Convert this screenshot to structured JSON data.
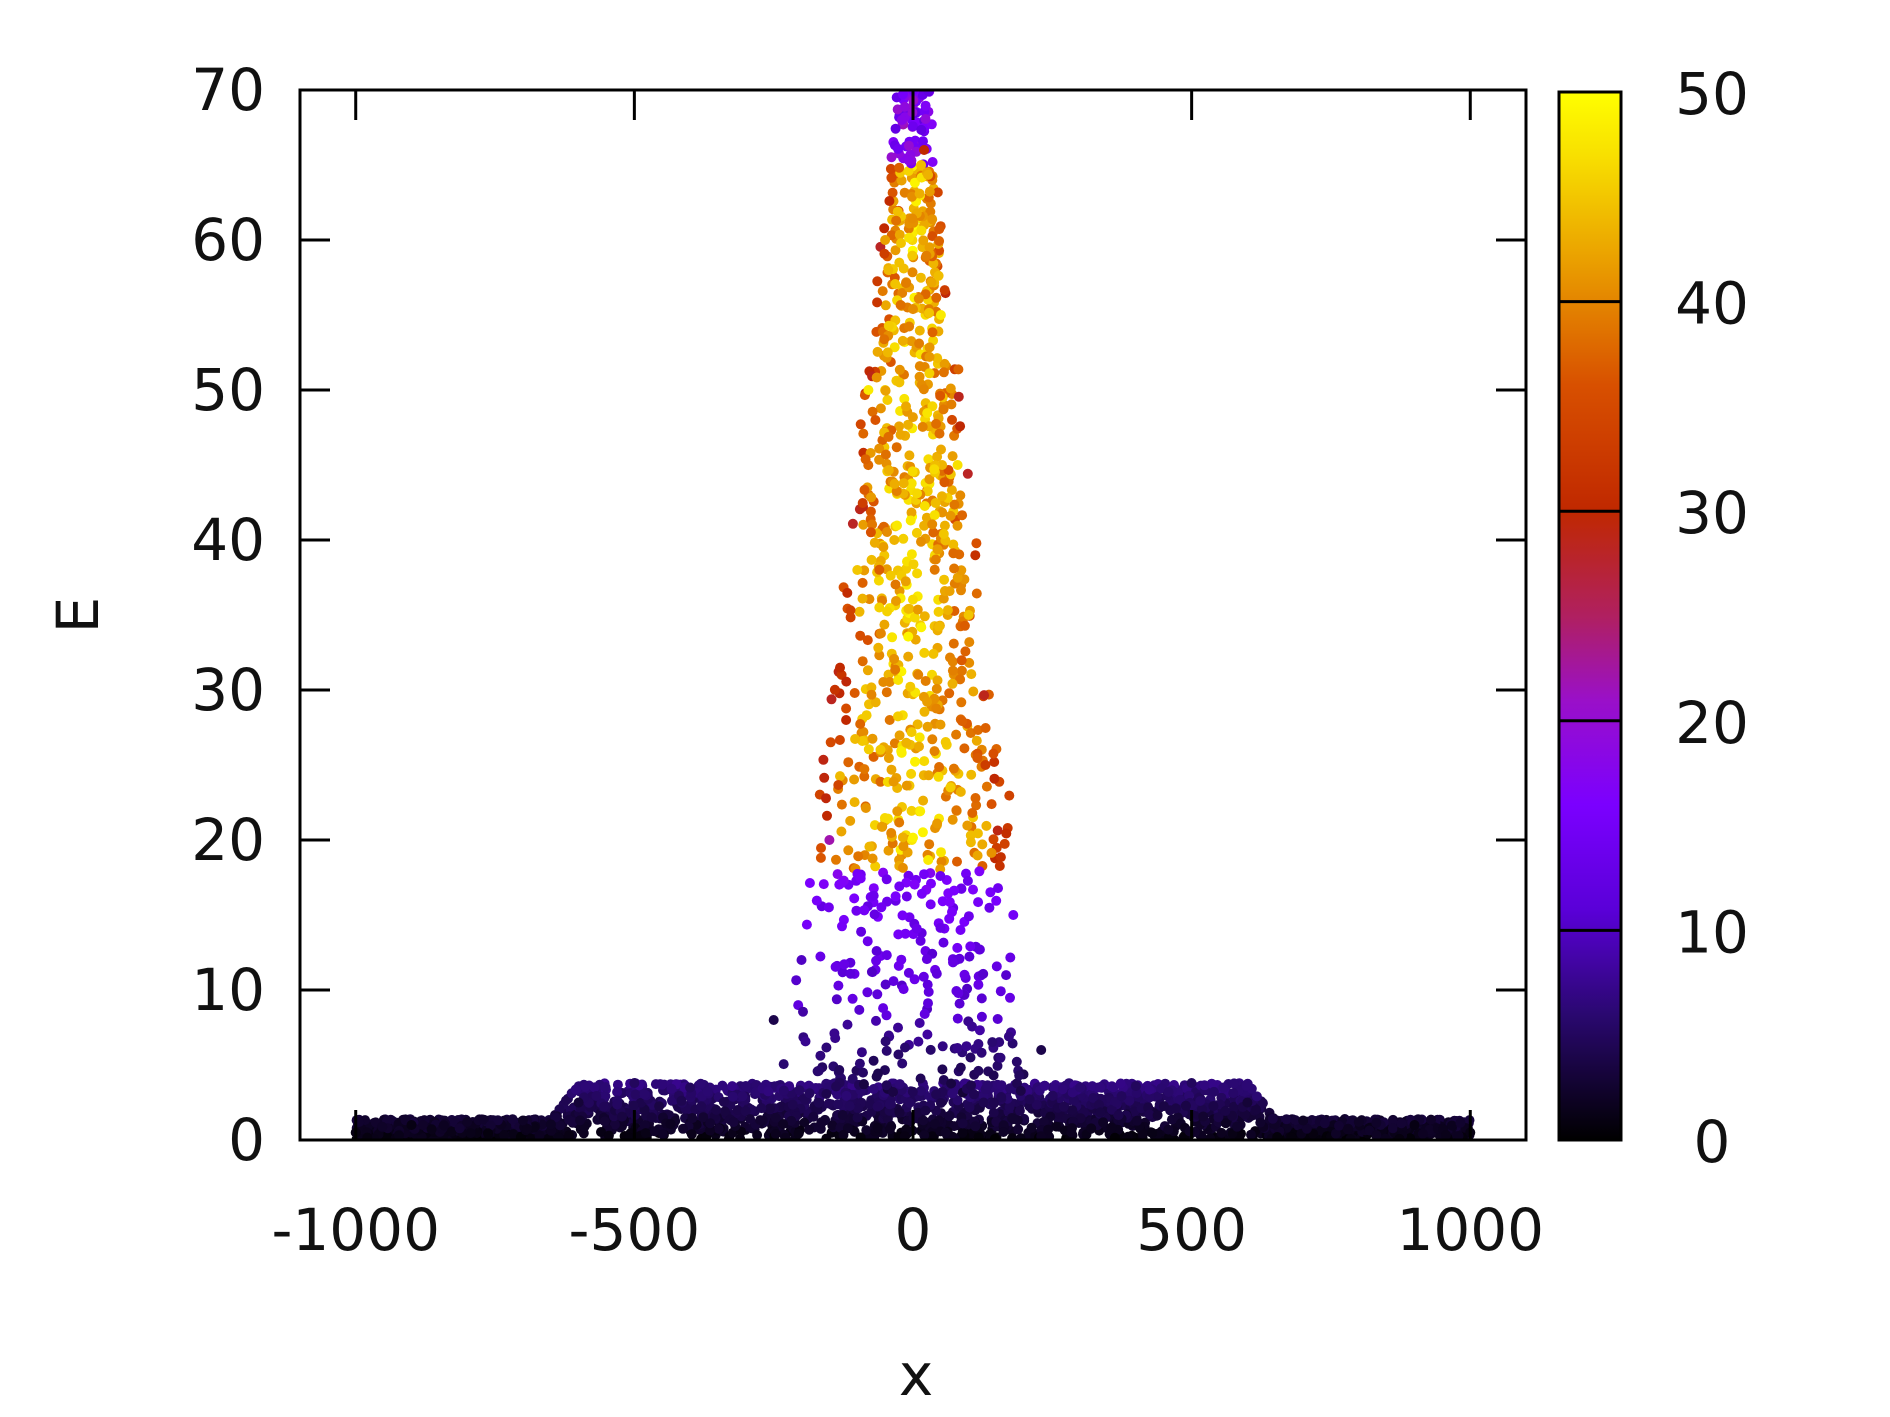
{
  "chart_data": {
    "type": "scatter",
    "title": "",
    "xlabel": "x",
    "ylabel": "E",
    "xlim": [
      -1100,
      1100
    ],
    "ylim": [
      0,
      70
    ],
    "x_ticks": [
      -1000,
      -500,
      0,
      500,
      1000
    ],
    "x_tick_labels": [
      "-1000",
      "-500",
      "0",
      "500",
      "1000"
    ],
    "y_ticks": [
      0,
      10,
      20,
      30,
      40,
      50,
      60,
      70
    ],
    "y_tick_labels": [
      "0",
      "10",
      "20",
      "30",
      "40",
      "50",
      "60",
      "70"
    ],
    "grid": false,
    "legend": "none",
    "colorbar": {
      "range": [
        0,
        50
      ],
      "ticks": [
        0,
        10,
        20,
        30,
        40,
        50
      ],
      "tick_labels": [
        "0",
        "10",
        "20",
        "30",
        "40",
        "50"
      ],
      "palette": [
        "#000000",
        "#3a0a8a",
        "#7b00ff",
        "#a01ab8",
        "#c02a00",
        "#e0700a",
        "#f5c800",
        "#ffff00"
      ]
    },
    "description_of_density": "Dense low-energy band (E 0-4) across x from -1000 to 1000; tall peak near x=0 reaching E=70; color encodes a third variable from 0 to 50.",
    "points": [
      {
        "x": -1000,
        "y": 0.5,
        "c": 1
      },
      {
        "x": -900,
        "y": 1.0,
        "c": 1
      },
      {
        "x": -800,
        "y": 1.2,
        "c": 2
      },
      {
        "x": -700,
        "y": 1.3,
        "c": 2
      },
      {
        "x": -600,
        "y": 2.5,
        "c": 3
      },
      {
        "x": -500,
        "y": 3.8,
        "c": 5
      },
      {
        "x": -400,
        "y": 3.5,
        "c": 5
      },
      {
        "x": -300,
        "y": 3.6,
        "c": 6
      },
      {
        "x": -250,
        "y": 8.0,
        "c": 4
      },
      {
        "x": -200,
        "y": 12.0,
        "c": 10
      },
      {
        "x": -150,
        "y": 20.0,
        "c": 22
      },
      {
        "x": -120,
        "y": 28.0,
        "c": 30
      },
      {
        "x": -100,
        "y": 38.0,
        "c": 45
      },
      {
        "x": -80,
        "y": 50.0,
        "c": 48
      },
      {
        "x": -50,
        "y": 60.0,
        "c": 42
      },
      {
        "x": -20,
        "y": 68.0,
        "c": 18
      },
      {
        "x": 0,
        "y": 70.0,
        "c": 15
      },
      {
        "x": 20,
        "y": 66.0,
        "c": 30
      },
      {
        "x": 50,
        "y": 55.0,
        "c": 48
      },
      {
        "x": 80,
        "y": 45.0,
        "c": 47
      },
      {
        "x": 100,
        "y": 35.0,
        "c": 45
      },
      {
        "x": 130,
        "y": 25.0,
        "c": 33
      },
      {
        "x": 180,
        "y": 15.0,
        "c": 15
      },
      {
        "x": 230,
        "y": 6.0,
        "c": 4
      },
      {
        "x": 300,
        "y": 3.5,
        "c": 6
      },
      {
        "x": 400,
        "y": 3.6,
        "c": 5
      },
      {
        "x": 500,
        "y": 3.8,
        "c": 5
      },
      {
        "x": 600,
        "y": 2.5,
        "c": 3
      },
      {
        "x": 700,
        "y": 1.3,
        "c": 2
      },
      {
        "x": 800,
        "y": 1.2,
        "c": 2
      },
      {
        "x": 900,
        "y": 1.0,
        "c": 1
      },
      {
        "x": 1000,
        "y": 0.5,
        "c": 1
      }
    ]
  }
}
